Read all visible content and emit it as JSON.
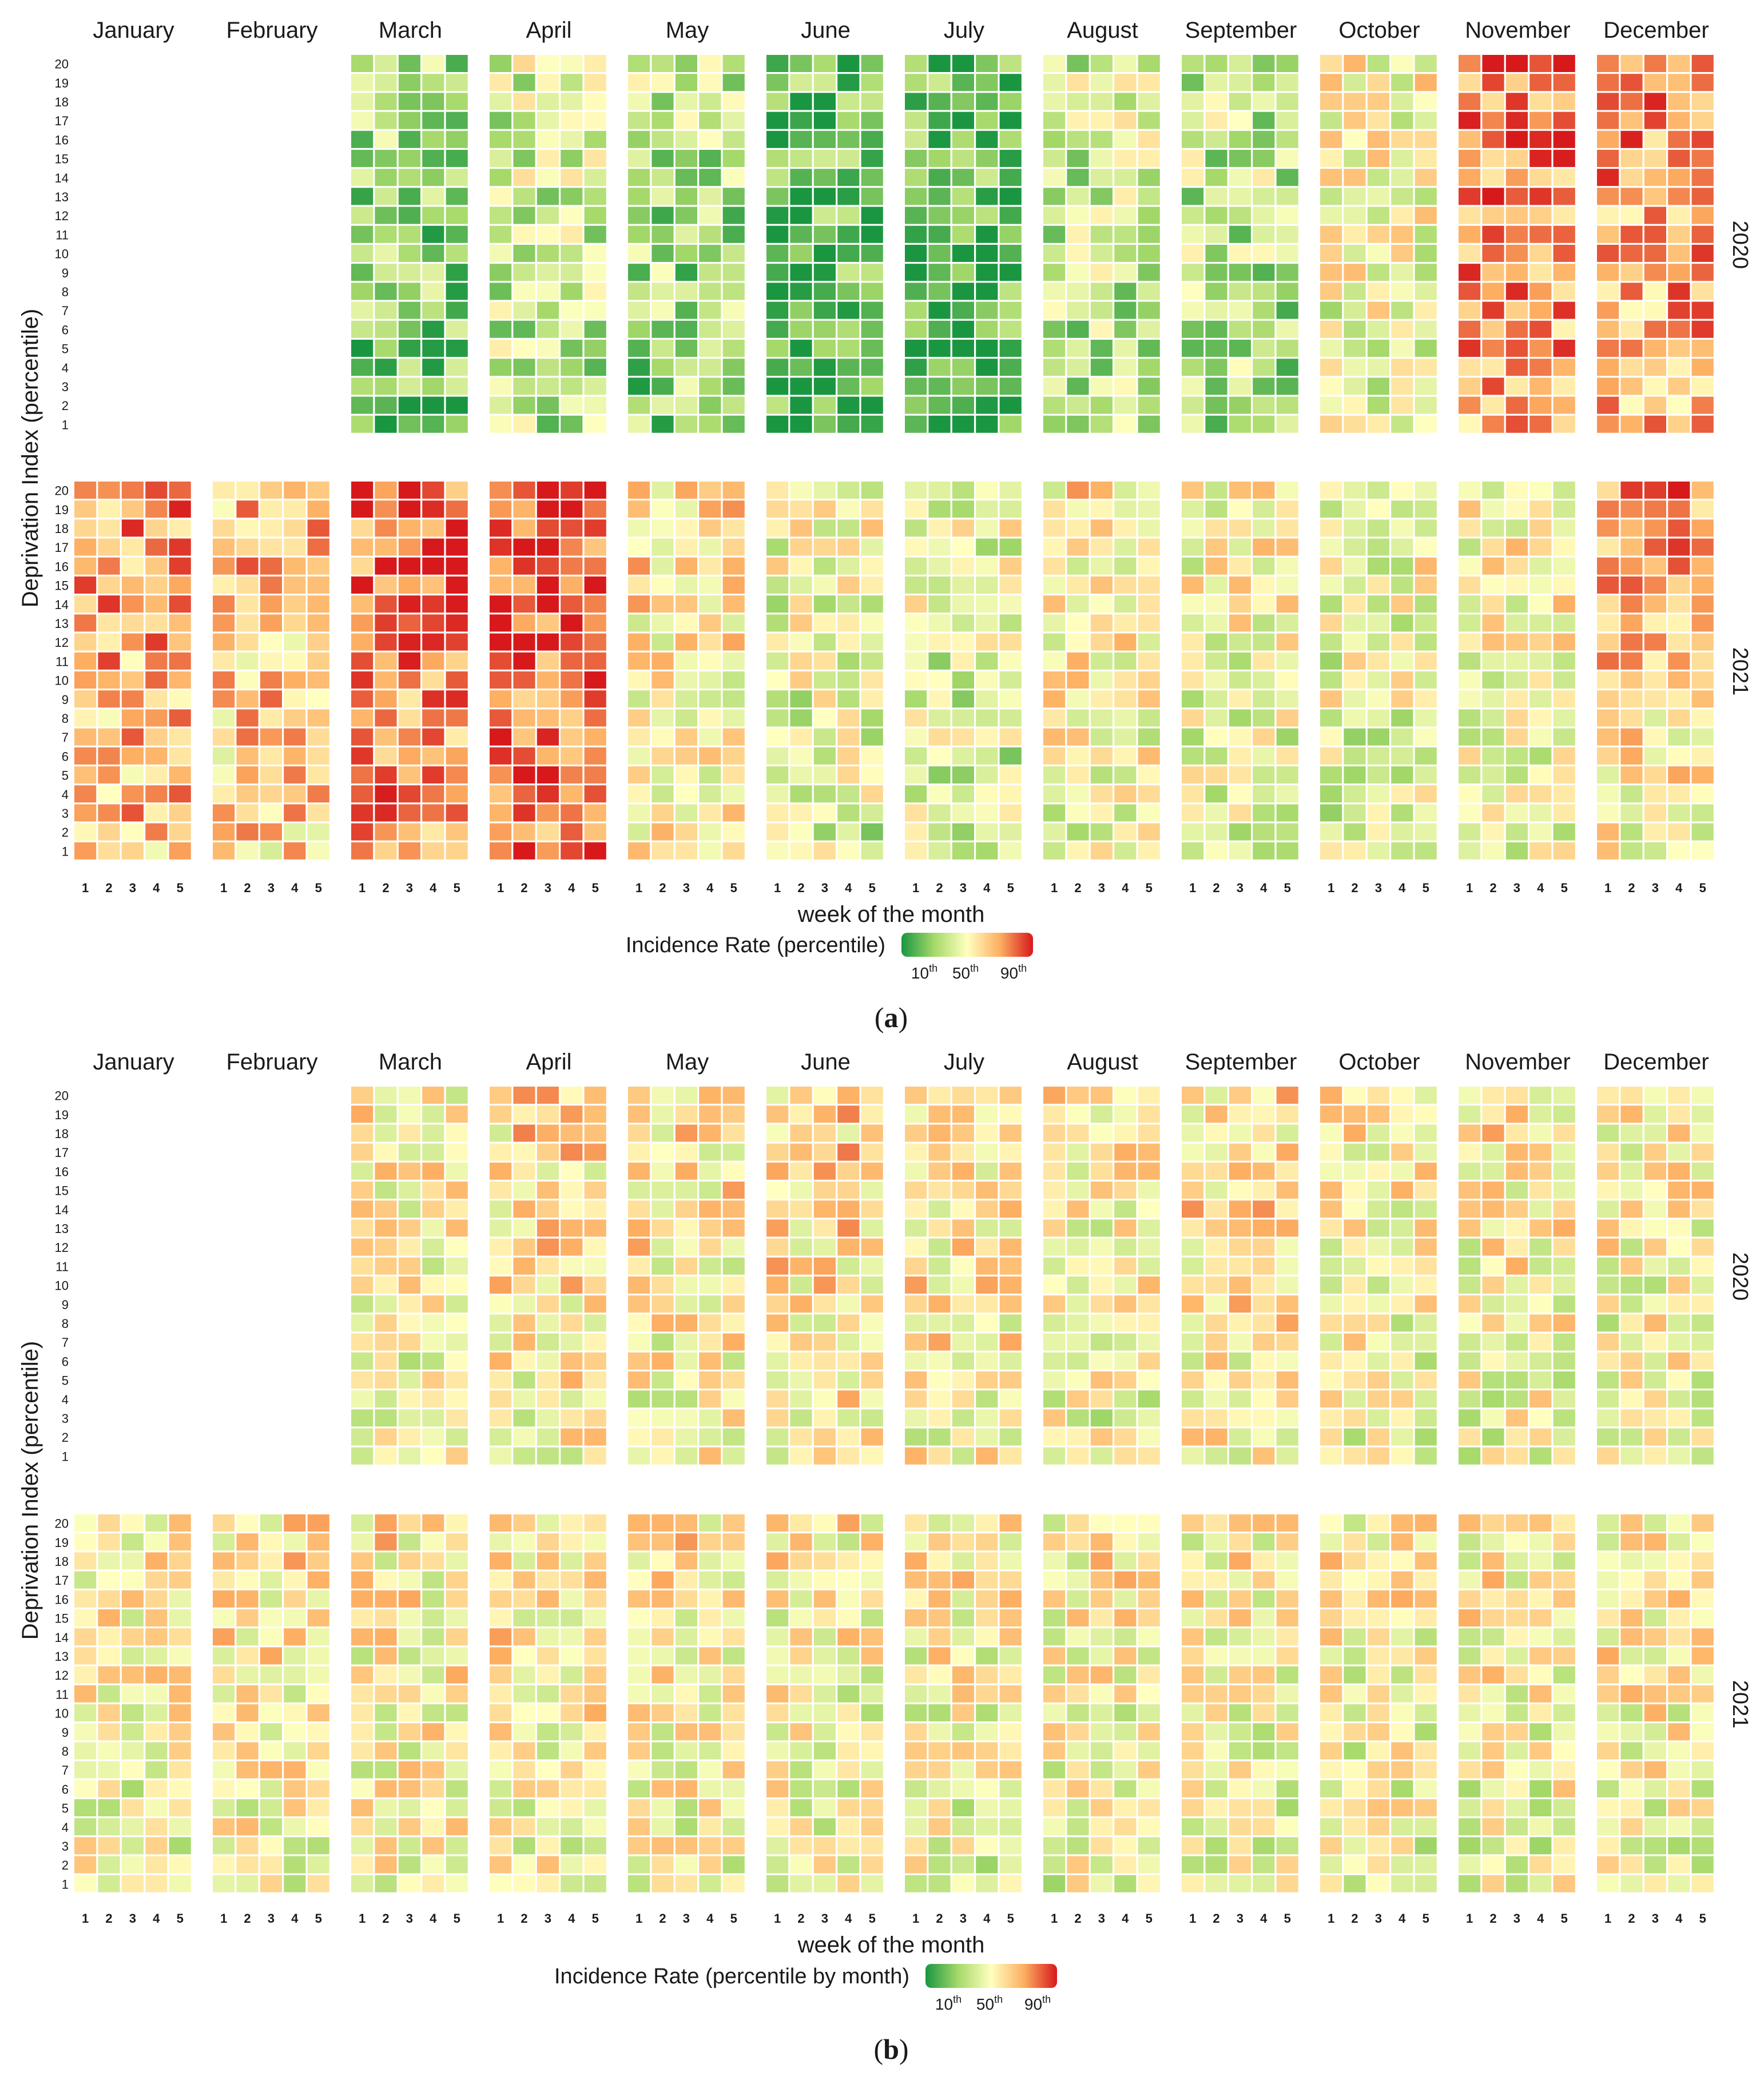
{
  "chart_data": [
    {
      "type": "heatmap",
      "panel_label": "(a)",
      "xlabel": "week of the month",
      "ylabel": "Deprivation Index (percentile)",
      "months": [
        "January",
        "February",
        "March",
        "April",
        "May",
        "June",
        "July",
        "August",
        "September",
        "October",
        "November",
        "December"
      ],
      "weeks": [
        1,
        2,
        3,
        4,
        5
      ],
      "deciles": [
        1,
        2,
        3,
        4,
        5,
        6,
        7,
        8,
        9,
        10,
        11,
        12,
        13,
        14,
        15,
        16,
        17,
        18,
        19,
        20
      ],
      "years": [
        "2020",
        "2021"
      ],
      "legend": {
        "title": "Incidence Rate (percentile)",
        "ticks": [
          "10th",
          "50th",
          "90th"
        ],
        "colors": [
          "#1a9641",
          "#a6d96a",
          "#ffffbf",
          "#fdae61",
          "#d7191c"
        ]
      },
      "value_scale": "0 = lowest percentile (green) to 1 = highest percentile (red)",
      "values_2020": {
        "January": null,
        "February": null,
        "March": 0.22,
        "April": 0.36,
        "May": 0.28,
        "June": 0.14,
        "July": 0.12,
        "August": 0.34,
        "September": 0.32,
        "October": 0.48,
        "November": 0.78,
        "December": 0.74
      },
      "values_2021": {
        "January": 0.72,
        "February": 0.66,
        "March": 0.8,
        "April": 0.86,
        "May": 0.56,
        "June": 0.44,
        "July": 0.42,
        "August": 0.52,
        "September": 0.48,
        "October": 0.46,
        "November": 0.5,
        "December": 0.64
      }
    },
    {
      "type": "heatmap",
      "panel_label": "(b)",
      "xlabel": "week of the month",
      "ylabel": "Deprivation Index (percentile)",
      "months": [
        "January",
        "February",
        "March",
        "April",
        "May",
        "June",
        "July",
        "August",
        "September",
        "October",
        "November",
        "December"
      ],
      "weeks": [
        1,
        2,
        3,
        4,
        5
      ],
      "deciles": [
        1,
        2,
        3,
        4,
        5,
        6,
        7,
        8,
        9,
        10,
        11,
        12,
        13,
        14,
        15,
        16,
        17,
        18,
        19,
        20
      ],
      "years": [
        "2020",
        "2021"
      ],
      "legend": {
        "title": "Incidence Rate (percentile by month)",
        "ticks": [
          "10th",
          "50th",
          "90th"
        ],
        "colors": [
          "#1a9641",
          "#a6d96a",
          "#ffffbf",
          "#fdae61",
          "#d7191c"
        ]
      },
      "value_scale": "0 = lowest percentile (green) to 1 = highest percentile (red)",
      "values_2020": {
        "January": null,
        "February": null,
        "March": 0.5,
        "April": 0.56,
        "May": 0.54,
        "June": 0.58,
        "July": 0.56,
        "August": 0.5,
        "September": 0.56,
        "October": 0.5,
        "November": 0.52,
        "December": 0.5
      },
      "values_2021": {
        "January": 0.5,
        "February": 0.54,
        "March": 0.52,
        "April": 0.54,
        "May": 0.52,
        "June": 0.5,
        "July": 0.5,
        "August": 0.5,
        "September": 0.5,
        "October": 0.5,
        "November": 0.5,
        "December": 0.52
      }
    }
  ]
}
